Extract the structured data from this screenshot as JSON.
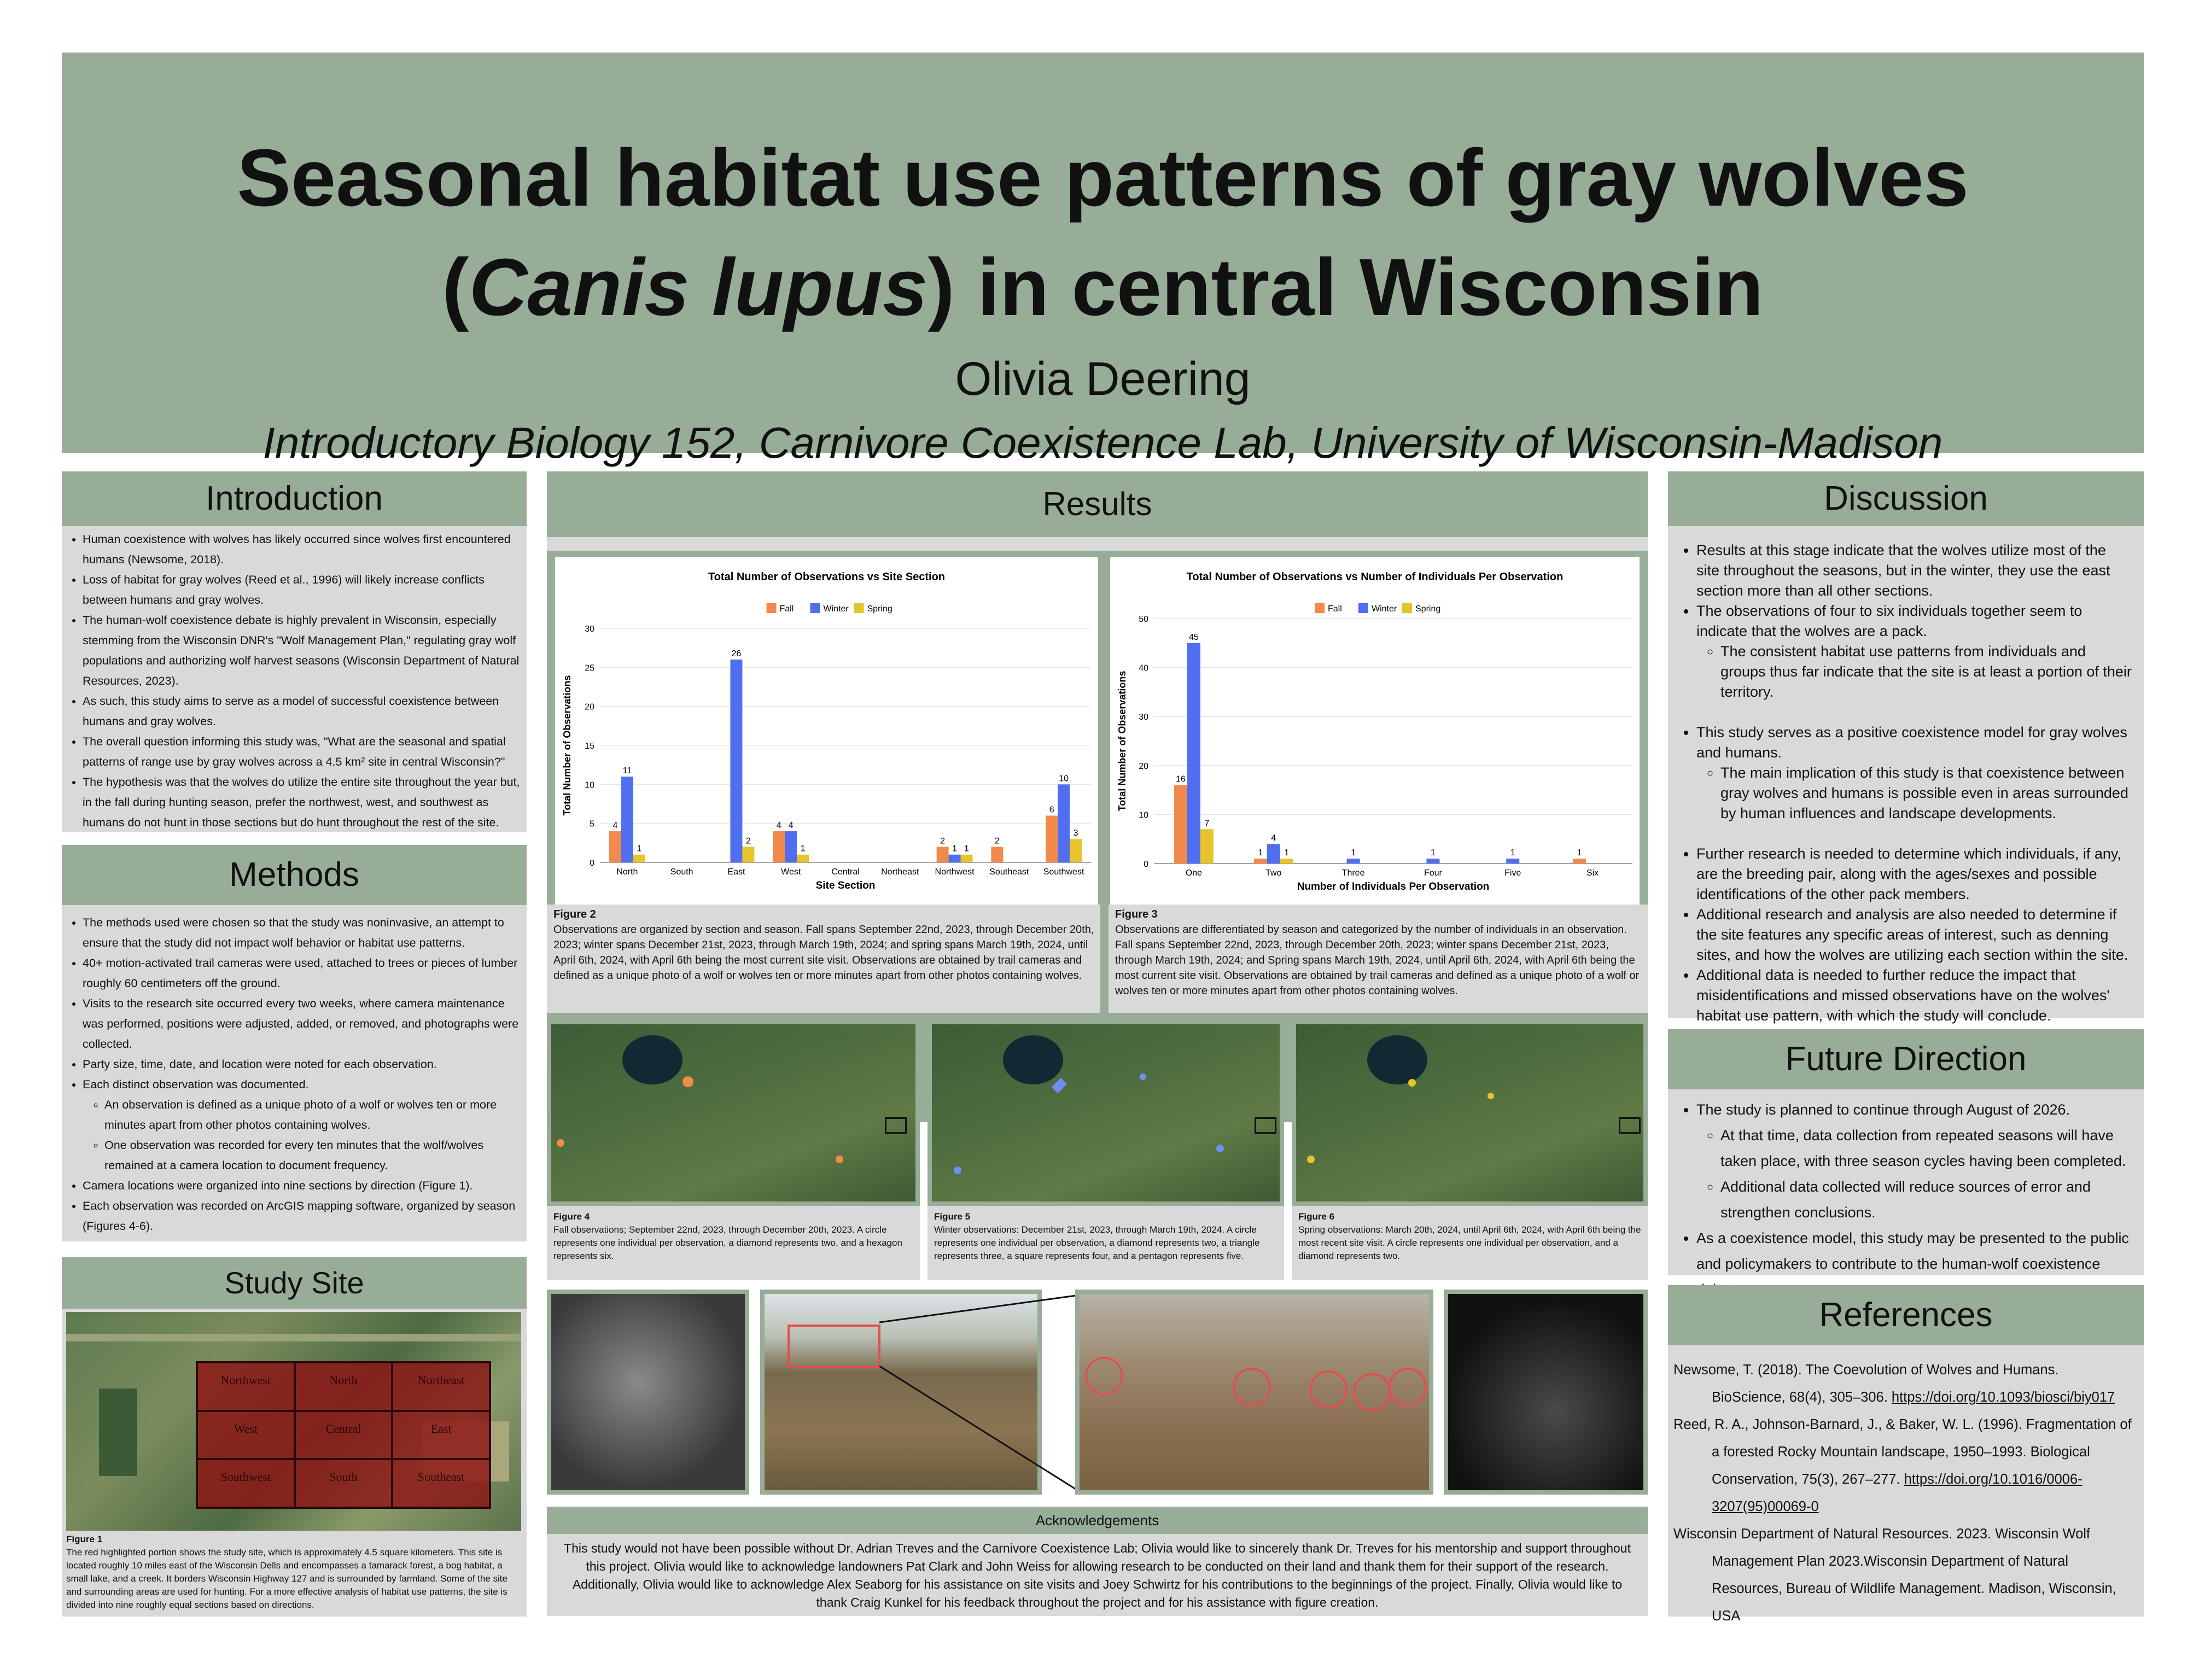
{
  "header": {
    "title_line1": "Seasonal habitat use patterns of gray wolves",
    "title_line2_open": "(",
    "title_line2_italic": "Canis lupus",
    "title_line2_rest": ") in central Wisconsin",
    "author": "Olivia Deering",
    "affiliation": "Introductory Biology 152, Carnivore Coexistence Lab, University of Wisconsin-Madison"
  },
  "introduction": {
    "heading": "Introduction",
    "bullets": [
      "Human coexistence with wolves has likely occurred since wolves first encountered humans (Newsome, 2018).",
      "Loss of habitat for gray wolves (Reed et al., 1996) will likely increase conflicts between humans and gray wolves.",
      "The human-wolf coexistence debate is highly prevalent in Wisconsin, especially stemming from the Wisconsin DNR's \"Wolf Management Plan,\" regulating gray wolf populations and authorizing wolf harvest seasons (Wisconsin Department of Natural Resources, 2023).",
      "As such, this study aims to serve as a model of successful coexistence between humans and gray wolves.",
      "The overall question informing this study was, \"What are the seasonal and spatial patterns of range use by gray wolves across a 4.5 km² site in central Wisconsin?\"",
      "The hypothesis was that the wolves do utilize the entire site throughout the year but, in the fall during hunting season, prefer the northwest, west, and southwest as humans do not hunt in those sections but do hunt throughout the rest of the site."
    ]
  },
  "methods": {
    "heading": "Methods",
    "bullets": [
      "The methods used were chosen so that the study was noninvasive, an attempt to ensure that the study did not impact wolf behavior or habitat use patterns.",
      "40+ motion-activated trail cameras were used, attached to trees or pieces of lumber roughly 60 centimeters off the ground.",
      "Visits to the research site occurred every two weeks, where camera maintenance was performed, positions were adjusted, added, or removed, and photographs were collected.",
      "Party size, time, date, and location were noted for each observation.",
      "Each distinct observation was documented."
    ],
    "sub_bullets": [
      "An observation is defined as a unique photo of a wolf or wolves ten or more minutes apart from other photos containing wolves.",
      "One observation was recorded for every ten minutes that the wolf/wolves remained at a camera location to document frequency."
    ],
    "bullets_after": [
      "Camera locations were organized into nine sections by direction (Figure 1).",
      "Each observation was recorded on ArcGIS mapping software, organized by season (Figures 4-6)."
    ]
  },
  "study_site": {
    "heading": "Study Site",
    "grid": [
      "Northwest",
      "North",
      "Northeast",
      "West",
      "Central",
      "East",
      "Southwest",
      "South",
      "Southeast"
    ],
    "caption_label": "Figure 1",
    "caption": "The red highlighted portion shows the study site, which is approximately 4.5 square kilometers. This site is located roughly 10 miles east of the Wisconsin Dells and encompasses a tamarack forest, a bog habitat, a small lake, and a creek. It borders Wisconsin Highway 127 and is surrounded by farmland. Some of the site and surrounding areas are used for hunting. For a more effective analysis of habitat use patterns, the site is divided into nine roughly equal sections based on directions."
  },
  "results": {
    "heading": "Results",
    "fig2_label": "Figure 2",
    "fig2_caption": "Observations are organized by section and season. Fall spans September 22nd, 2023, through December 20th, 2023; winter spans December 21st, 2023, through March 19th, 2024; and spring spans March 19th, 2024, until April 6th, 2024, with April 6th being the most current site visit. Observations are obtained by trail cameras and defined as a unique photo of a wolf or wolves ten or more minutes apart from other photos containing wolves.",
    "fig3_label": "Figure 3",
    "fig3_caption": "Observations are differentiated by season and categorized by the number of individuals in an observation. Fall spans September 22nd, 2023, through December 20th, 2023; winter spans December 21st, 2023, through March 19th, 2024; and Spring spans March 19th, 2024, until April 6th, 2024, with April 6th being the most current site visit. Observations are obtained by trail cameras and defined as a unique photo of a wolf or wolves ten or more minutes apart from other photos containing wolves.",
    "fig4_label": "Figure 4",
    "fig4_caption": "Fall observations; September 22nd, 2023, through December 20th, 2023. A circle represents one individual per observation, a diamond represents two, and a hexagon represents six.",
    "fig5_label": "Figure 5",
    "fig5_caption": "Winter observations: December 21st, 2023, through March 19th, 2024. A circle represents one individual per observation, a diamond represents two, a triangle represents three, a square represents four, and a pentagon represents five.",
    "fig6_label": "Figure 6",
    "fig6_caption": "Spring observations: March 20th, 2024, until April 6th, 2024, with April 6th being the most recent site visit. A circle represents one individual per observation, and a diamond represents two."
  },
  "acknowledgements": {
    "heading": "Acknowledgements",
    "text": "This study would not have been possible without Dr. Adrian Treves and the Carnivore Coexistence Lab; Olivia would like to sincerely thank Dr. Treves for his mentorship and support throughout this project. Olivia would like to acknowledge landowners Pat Clark and John Weiss for allowing research to be conducted on their land and thank them for their support of the research. Additionally, Olivia would like to acknowledge Alex Seaborg for his assistance on site visits and Joey Schwirtz for his contributions to the beginnings of the project. Finally, Olivia would like to thank Craig Kunkel for his feedback throughout the project and for his assistance with figure creation."
  },
  "discussion": {
    "heading": "Discussion",
    "b1": "Results at this stage indicate that the wolves utilize most of the site throughout the seasons, but in the winter, they use the east section more than all other sections.",
    "b2": "The observations of four to six individuals together seem to indicate that the wolves are a pack.",
    "b2_sub": "The consistent habitat use patterns from individuals and groups thus far indicate that the site is at least a portion of their territory.",
    "b3": "This study serves as a positive coexistence model for gray wolves and humans.",
    "b3_sub": "The main implication of this study is that coexistence between gray wolves and humans is possible even in areas surrounded by human influences and landscape developments.",
    "b4": "Further research is needed to determine which individuals, if any, are the breeding pair, along with the ages/sexes and possible identifications of the other pack members.",
    "b5": "Additional research and analysis are also needed to determine if the site features any specific areas of interest, such as denning sites, and how the wolves are utilizing each section within the site.",
    "b6": "Additional data is needed to further reduce the impact that misidentifications and missed observations have on the wolves' habitat use pattern, with which the study will conclude."
  },
  "future": {
    "heading": "Future Direction",
    "b1": "The study is planned to continue through August of 2026.",
    "s1": "At that time, data collection from repeated seasons will have taken place, with three season cycles having been completed.",
    "s2": "Additional data collected will reduce sources of error and strengthen conclusions.",
    "b2": "As a coexistence model, this study may be presented to the public and policymakers to contribute to the human-wolf coexistence debate."
  },
  "references": {
    "heading": "References",
    "r1": "Newsome, T. (2018). The Coevolution of Wolves and Humans. BioScience, 68(4), 305–306. ",
    "r1_link": "https://doi.org/10.1093/biosci/biy017",
    "r2": "Reed, R. A., Johnson-Barnard, J., & Baker, W. L. (1996). Fragmentation of a forested Rocky Mountain landscape, 1950–1993. Biological Conservation, 75(3), 267–277. ",
    "r2_link": "https://doi.org/10.1016/0006-3207(95)00069-0",
    "r3": "Wisconsin Department of Natural Resources. 2023. Wisconsin Wolf Management Plan 2023.Wisconsin Department of Natural Resources, Bureau of Wildlife Management. Madison, Wisconsin, USA"
  },
  "chart_data": [
    {
      "type": "bar",
      "title": "Total Number of Observations vs Site Section",
      "xlabel": "Site Section",
      "ylabel": "Total Number of Observations",
      "ylim": [
        0,
        30
      ],
      "yticks": [
        0,
        5,
        10,
        15,
        20,
        25,
        30
      ],
      "legend_position": "top-center",
      "grid": true,
      "categories": [
        "North",
        "South",
        "East",
        "West",
        "Central",
        "Northeast",
        "Northwest",
        "Southeast",
        "Southwest"
      ],
      "series": [
        {
          "name": "Fall",
          "color": "#f28a4b",
          "values": [
            4,
            0,
            0,
            4,
            0,
            0,
            2,
            2,
            6
          ]
        },
        {
          "name": "Winter",
          "color": "#4f6ef0",
          "values": [
            11,
            0,
            26,
            4,
            0,
            0,
            1,
            0,
            10
          ]
        },
        {
          "name": "Spring",
          "color": "#e6c42a",
          "values": [
            1,
            0,
            2,
            1,
            0,
            0,
            1,
            0,
            3
          ]
        }
      ]
    },
    {
      "type": "bar",
      "title": "Total Number of Observations vs Number of Individuals Per Observation",
      "xlabel": "Number of Individuals Per Observation",
      "ylabel": "Total Number of Observations",
      "ylim": [
        0,
        50
      ],
      "yticks": [
        0,
        10,
        20,
        30,
        40,
        50
      ],
      "legend_position": "top-center",
      "grid": true,
      "categories": [
        "One",
        "Two",
        "Three",
        "Four",
        "Five",
        "Six"
      ],
      "series": [
        {
          "name": "Fall",
          "color": "#f28a4b",
          "values": [
            16,
            1,
            0,
            0,
            0,
            1
          ]
        },
        {
          "name": "Winter",
          "color": "#4f6ef0",
          "values": [
            45,
            4,
            1,
            1,
            1,
            0
          ]
        },
        {
          "name": "Spring",
          "color": "#e6c42a",
          "values": [
            7,
            1,
            0,
            0,
            0,
            0
          ]
        }
      ]
    }
  ]
}
